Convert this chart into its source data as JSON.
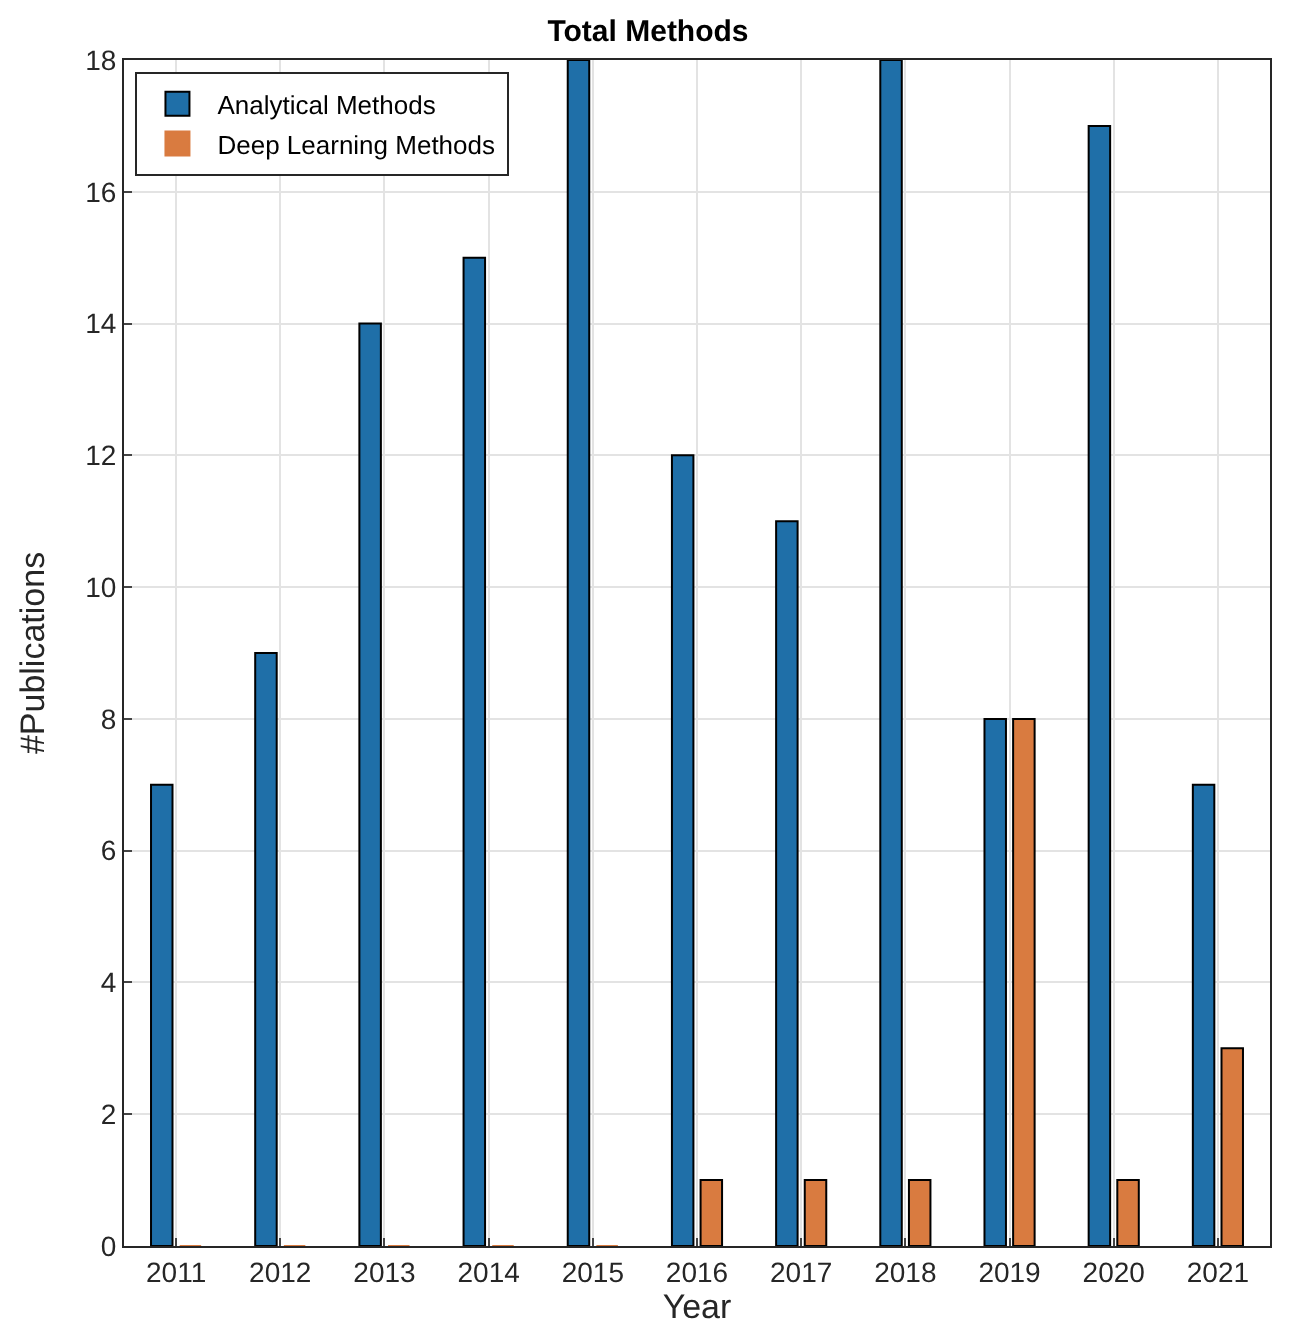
{
  "chart_data": {
    "type": "bar",
    "title": "Total Methods",
    "xlabel": "Year",
    "ylabel": "#Publications",
    "categories": [
      "2011",
      "2012",
      "2013",
      "2014",
      "2015",
      "2016",
      "2017",
      "2018",
      "2019",
      "2020",
      "2021"
    ],
    "series": [
      {
        "name": "Analytical Methods",
        "color": "#1f6fa8",
        "values": [
          7,
          9,
          14,
          15,
          18,
          12,
          11,
          18,
          8,
          17,
          7
        ]
      },
      {
        "name": "Deep Learning Methods",
        "color": "#d97b40",
        "values": [
          0,
          0,
          0,
          0,
          0,
          1,
          1,
          1,
          8,
          1,
          3
        ]
      }
    ],
    "ylim": [
      0,
      18
    ],
    "yticks": [
      0,
      2,
      4,
      6,
      8,
      10,
      12,
      14,
      16,
      18
    ],
    "grid": true,
    "legend": "top left"
  }
}
